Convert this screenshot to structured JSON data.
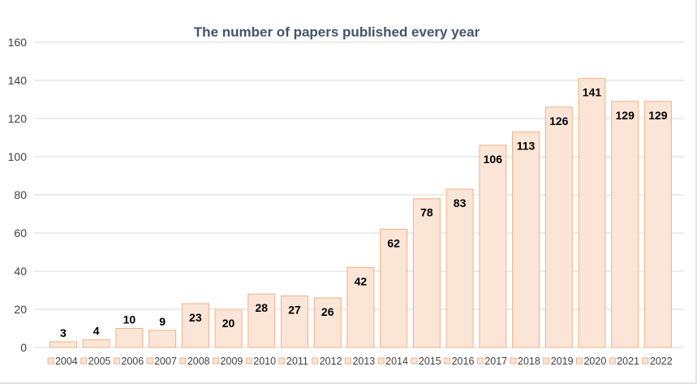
{
  "chart_data": {
    "type": "bar",
    "title": "The number of papers published  every year",
    "categories": [
      "2004",
      "2005",
      "2006",
      "2007",
      "2008",
      "2009",
      "2010",
      "2011",
      "2012",
      "2013",
      "2014",
      "2015",
      "2016",
      "2017",
      "2018",
      "2019",
      "2020",
      "2021",
      "2022"
    ],
    "values": [
      3,
      4,
      10,
      9,
      23,
      20,
      28,
      27,
      26,
      42,
      62,
      78,
      83,
      106,
      113,
      126,
      141,
      129,
      129
    ],
    "ylim": [
      0,
      160
    ],
    "yticks": [
      0,
      20,
      40,
      60,
      80,
      100,
      120,
      140,
      160
    ],
    "grid": true,
    "legend": "bottom",
    "colors": {
      "bar_fill": "#fbe5d6",
      "bar_stroke": "#f4b183",
      "grid": "#d9d9d9",
      "title": "#44546a"
    }
  }
}
